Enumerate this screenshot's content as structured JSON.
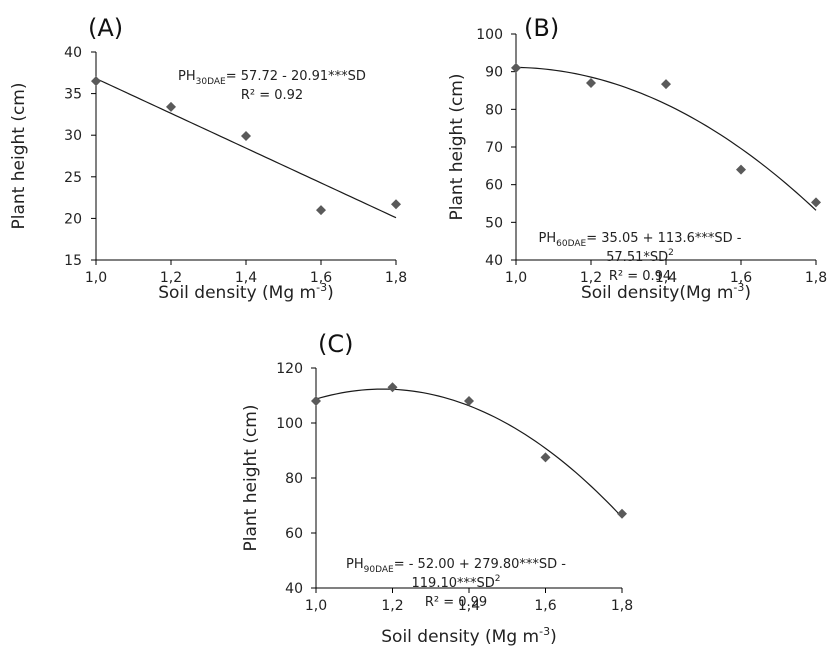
{
  "chart_data": [
    {
      "type": "scatter",
      "panel_label": "(A)",
      "xlabel": "Soil density (Mg m",
      "xlabel_sup": "-3",
      "xlabel_end": ")",
      "ylabel": "Plant height (cm)",
      "xlim": [
        1.0,
        1.8
      ],
      "ylim": [
        15,
        40
      ],
      "x_ticks": [
        1.0,
        1.2,
        1.4,
        1.6,
        1.8
      ],
      "x_tick_labels": [
        "1,0",
        "1,2",
        "1,4",
        "1,6",
        "1,8"
      ],
      "y_ticks": [
        15,
        20,
        25,
        30,
        35,
        40
      ],
      "y_tick_labels": [
        "15",
        "20",
        "25",
        "30",
        "35",
        "40"
      ],
      "x": [
        1.0,
        1.2,
        1.4,
        1.6,
        1.8
      ],
      "y": [
        36.5,
        33.4,
        29.9,
        21.0,
        21.7
      ],
      "fit": {
        "type": "poly",
        "coef": [
          57.72,
          -20.91,
          0
        ]
      },
      "equation_lines": [
        {
          "pre": "PH",
          "sub": "30DAE",
          "post": "= 57.72 - 20.91***SD"
        },
        {
          "pre": "R² = 0.92"
        }
      ],
      "marker_color": "#5a5a5a",
      "line_color": "#1a1a1a"
    },
    {
      "type": "scatter",
      "panel_label": "(B)",
      "xlabel": "Soil density(Mg m",
      "xlabel_sup": "-3",
      "xlabel_end": ")",
      "ylabel": "Plant height (cm)",
      "xlim": [
        1.0,
        1.8
      ],
      "ylim": [
        40,
        100
      ],
      "x_ticks": [
        1.0,
        1.2,
        1.4,
        1.6,
        1.8
      ],
      "x_tick_labels": [
        "1,0",
        "1,2",
        "1,4",
        "1,6",
        "1,8"
      ],
      "y_ticks": [
        40,
        50,
        60,
        70,
        80,
        90,
        100
      ],
      "y_tick_labels": [
        "40",
        "50",
        "60",
        "70",
        "80",
        "90",
        "100"
      ],
      "x": [
        1.0,
        1.2,
        1.4,
        1.6,
        1.8
      ],
      "y": [
        91.0,
        87.0,
        86.7,
        64.0,
        55.3
      ],
      "fit": {
        "type": "poly",
        "coef": [
          35.05,
          113.6,
          -57.51
        ]
      },
      "equation_lines": [
        {
          "pre": "PH",
          "sub": "60DAE",
          "post": "= 35.05 + 113.6***SD  -"
        },
        {
          "pre": "57.51*SD",
          "sup": "2"
        },
        {
          "pre": "R² = 0.94"
        }
      ],
      "marker_color": "#5a5a5a",
      "line_color": "#1a1a1a"
    },
    {
      "type": "scatter",
      "panel_label": "(C)",
      "xlabel": "Soil density (Mg m",
      "xlabel_sup": "-3",
      "xlabel_end": ")",
      "ylabel": "Plant height (cm)",
      "xlim": [
        1.0,
        1.8
      ],
      "ylim": [
        40,
        120
      ],
      "x_ticks": [
        1.0,
        1.2,
        1.4,
        1.6,
        1.8
      ],
      "x_tick_labels": [
        "1,0",
        "1,2",
        "1,4",
        "1,6",
        "1,8"
      ],
      "y_ticks": [
        40,
        60,
        80,
        100,
        120
      ],
      "y_tick_labels": [
        "40",
        "60",
        "80",
        "100",
        "120"
      ],
      "x": [
        1.0,
        1.2,
        1.4,
        1.6,
        1.8
      ],
      "y": [
        108.0,
        113.0,
        108.0,
        87.5,
        67.0
      ],
      "fit": {
        "type": "poly",
        "coef": [
          -52.0,
          279.8,
          -119.1
        ]
      },
      "equation_lines": [
        {
          "pre": "PH",
          "sub": "90DAE",
          "post": "= - 52.00 + 279.80***SD -"
        },
        {
          "pre": "119.10***SD",
          "sup": "2"
        },
        {
          "pre": "R² = 0.99"
        }
      ],
      "marker_color": "#5a5a5a",
      "line_color": "#1a1a1a"
    }
  ]
}
